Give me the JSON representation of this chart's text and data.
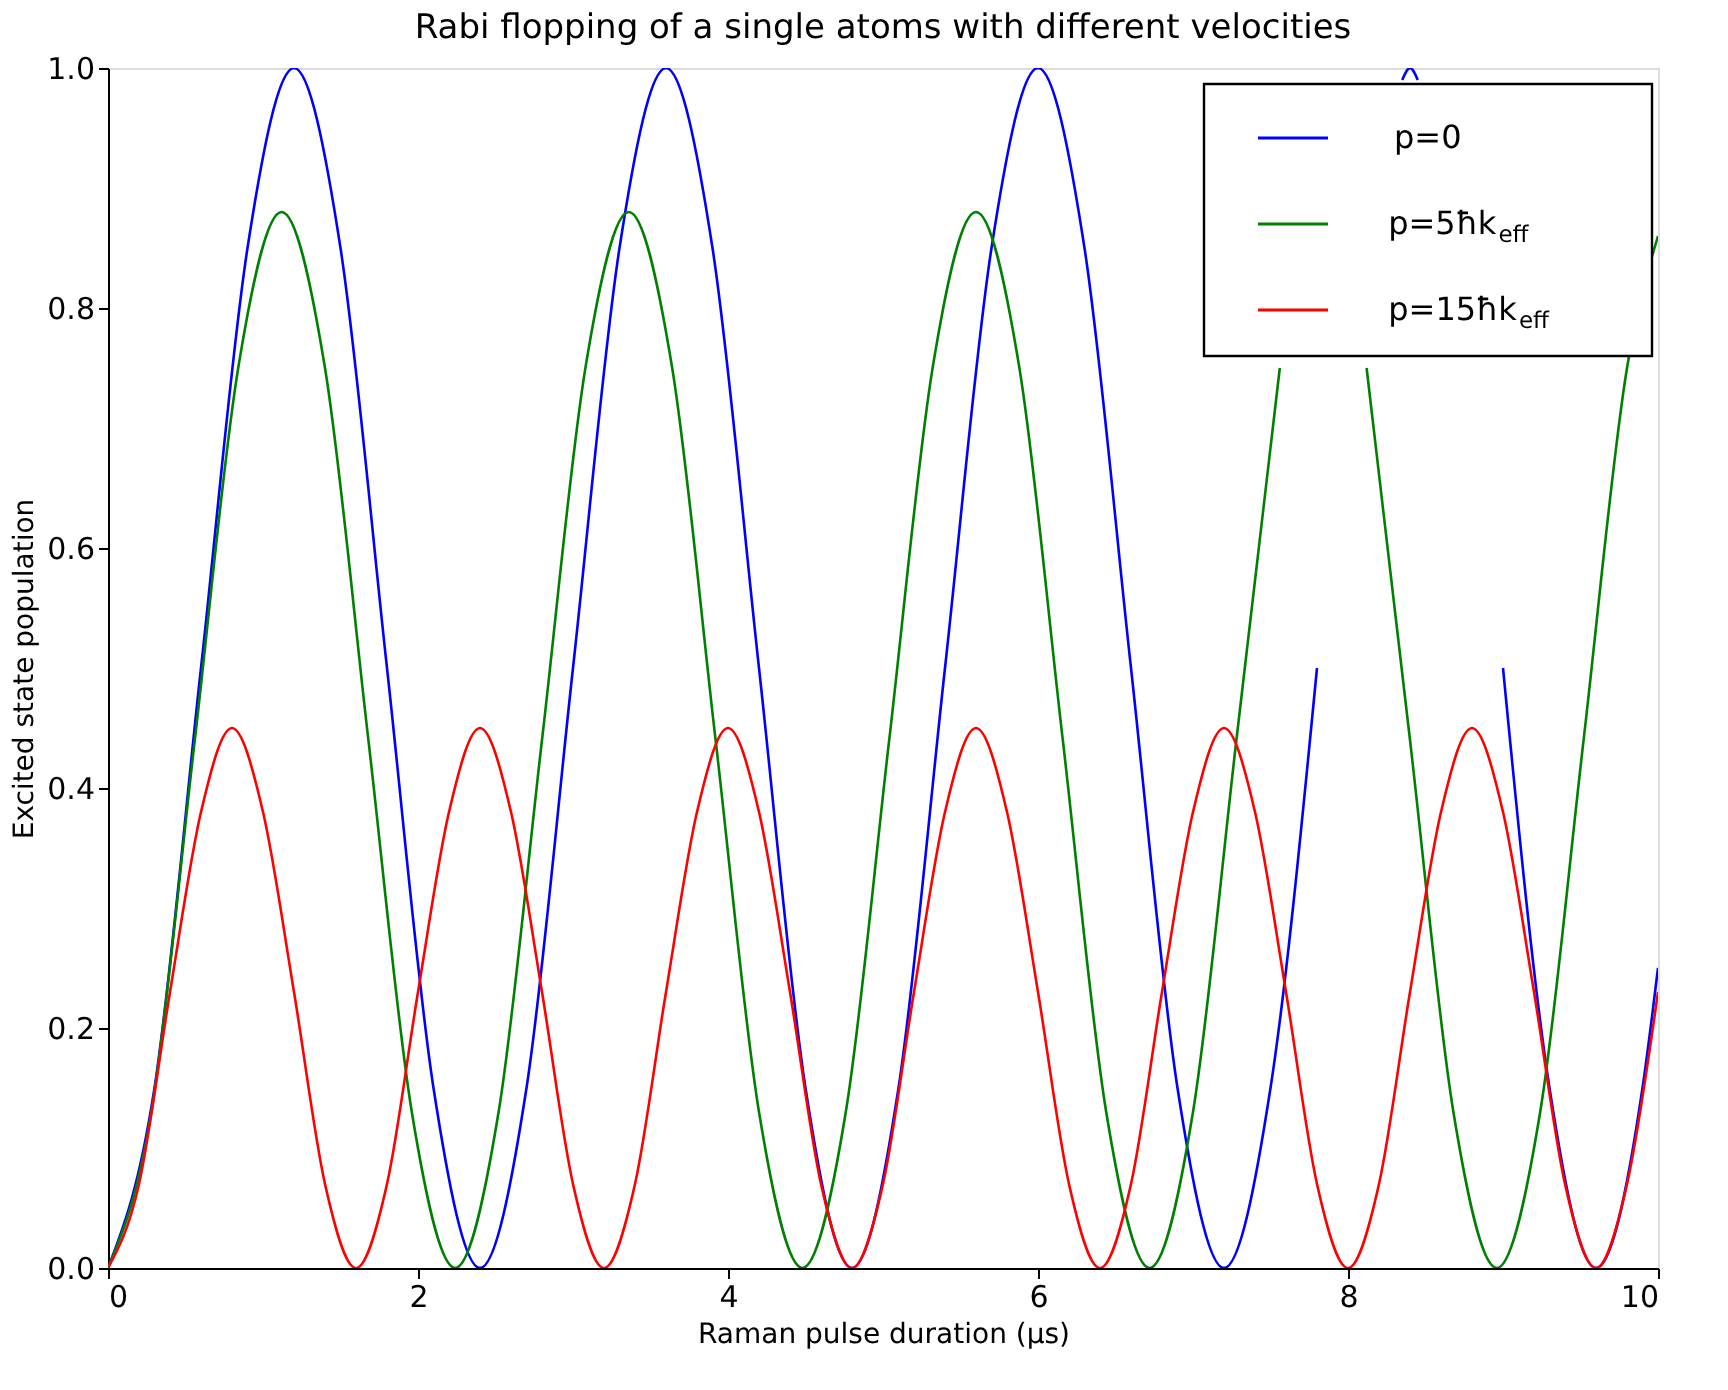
{
  "chart_data": {
    "type": "line",
    "title": "Rabi flopping of a single atoms with different velocities",
    "xlabel": "Raman pulse duration (μs)",
    "ylabel": "Excited state population",
    "xlim": [
      0,
      10
    ],
    "xticks": [
      0,
      2,
      4,
      6,
      8,
      10
    ],
    "ylim": [
      0,
      1
    ],
    "yticks": [
      {
        "value": 0,
        "label": "0.0"
      },
      {
        "value": 0.2,
        "label": "0.2"
      },
      {
        "value": 0.4,
        "label": "0.4"
      },
      {
        "value": 0.6,
        "label": "0.6"
      },
      {
        "value": 0.8,
        "label": "0.8"
      },
      {
        "value": 1,
        "label": "1.0"
      }
    ],
    "grid": false,
    "legend": "top right",
    "line_style": "solid",
    "marker": "none",
    "series": [
      {
        "name": "p=0",
        "color": "#0000ff",
        "x": [
          0,
          0.3,
          0.6,
          0.9,
          1.2,
          1.5,
          1.8,
          2.1,
          2.4,
          2.7,
          3,
          3.3,
          3.6,
          3.9,
          4.2,
          4.5,
          4.8,
          5.1,
          5.4,
          5.7,
          6,
          6.3,
          6.6,
          6.9,
          7.2,
          7.5,
          7.8,
          8.1,
          8.35,
          8.4,
          8.45,
          8.7,
          9,
          9.3,
          9.6,
          9.9,
          10
        ],
        "values": [
          0,
          0.15,
          0.5,
          0.85,
          1,
          0.85,
          0.5,
          0.15,
          0,
          0.15,
          0.5,
          0.85,
          1,
          0.85,
          0.5,
          0.15,
          0,
          0.15,
          0.5,
          0.85,
          1,
          0.85,
          0.5,
          0.15,
          0,
          0.15,
          0.5,
          null,
          0.99,
          1,
          0.99,
          null,
          0.5,
          0.15,
          0,
          0.15,
          0.25
        ]
      },
      {
        "name": "p=5ħk$_{eff}$",
        "color": "#008000",
        "x": [
          0,
          0.28,
          0.56,
          0.84,
          1.12,
          1.4,
          1.68,
          1.96,
          2.24,
          2.52,
          2.8,
          3.08,
          3.36,
          3.64,
          3.92,
          4.2,
          4.48,
          4.76,
          5.04,
          5.32,
          5.6,
          5.88,
          6.16,
          6.44,
          6.72,
          7,
          7.28,
          7.56,
          7.84,
          8.12,
          8.4,
          8.68,
          8.96,
          9.24,
          9.52,
          9.8,
          10
        ],
        "values": [
          0,
          0.13,
          0.44,
          0.75,
          0.88,
          0.75,
          0.44,
          0.13,
          0,
          0.13,
          0.44,
          0.75,
          0.88,
          0.75,
          0.44,
          0.13,
          0,
          0.13,
          0.44,
          0.75,
          0.88,
          0.75,
          0.44,
          0.13,
          0,
          0.13,
          0.44,
          0.75,
          null,
          0.75,
          0.44,
          0.13,
          0,
          0.13,
          0.44,
          0.75,
          0.86
        ]
      },
      {
        "name": "p=15ħk$_{eff}$",
        "color": "#ff0000",
        "x": [
          0,
          0.2,
          0.4,
          0.6,
          0.8,
          1,
          1.2,
          1.4,
          1.6,
          1.8,
          2,
          2.2,
          2.4,
          2.6,
          2.8,
          3,
          3.2,
          3.4,
          3.6,
          3.8,
          4,
          4.2,
          4.4,
          4.6,
          4.8,
          5,
          5.2,
          5.4,
          5.6,
          5.8,
          6,
          6.2,
          6.4,
          6.6,
          6.8,
          7,
          7.2,
          7.4,
          7.6,
          7.8,
          8,
          8.2,
          8.4,
          8.6,
          8.8,
          9,
          9.2,
          9.4,
          9.6,
          9.8,
          10
        ],
        "values": [
          0,
          0.07,
          0.23,
          0.38,
          0.45,
          0.38,
          0.23,
          0.07,
          0,
          0.07,
          0.23,
          0.38,
          0.45,
          0.38,
          0.23,
          0.07,
          0,
          0.07,
          0.23,
          0.38,
          0.45,
          0.38,
          0.23,
          0.07,
          0,
          0.07,
          0.23,
          0.38,
          0.45,
          0.38,
          0.23,
          0.07,
          0,
          0.07,
          0.23,
          0.38,
          0.45,
          0.38,
          0.23,
          0.07,
          0,
          0.07,
          0.23,
          0.38,
          0.45,
          0.38,
          0.23,
          0.07,
          0,
          0.07,
          0.23
        ]
      }
    ]
  }
}
